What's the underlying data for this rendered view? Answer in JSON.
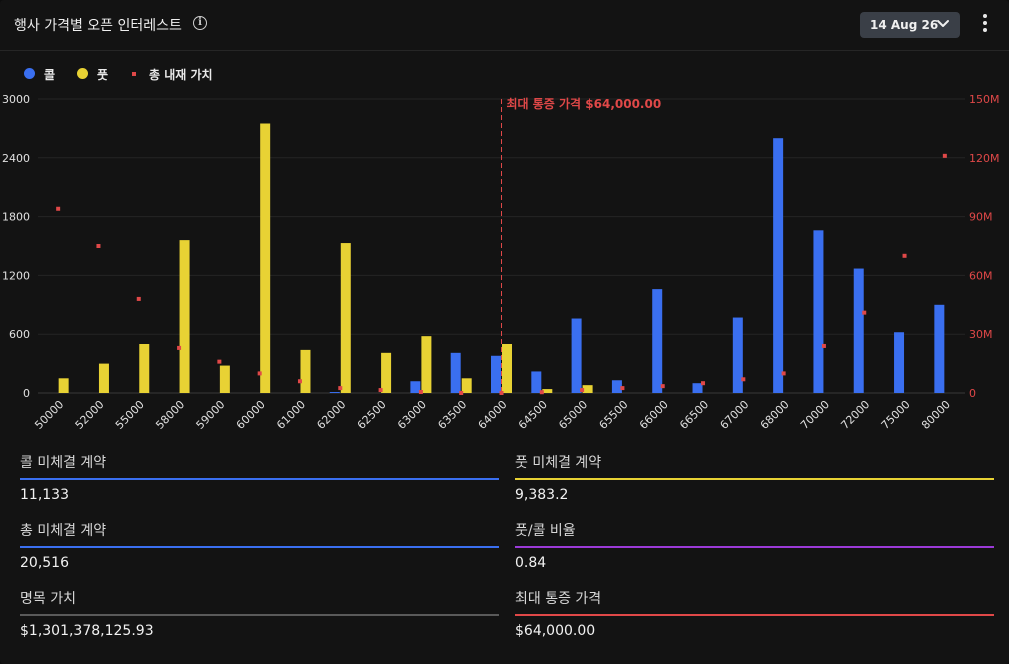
{
  "header": {
    "title": "행사 가격별 오픈 인터레스트",
    "info_glyph": "i",
    "date_value": "14 Aug 26"
  },
  "legend": [
    {
      "label": "콜",
      "color": "#3a6ff0"
    },
    {
      "label": "풋",
      "color": "#e8d234"
    },
    {
      "label": "총 내재 가치",
      "color": "#e04848"
    }
  ],
  "chart_data": {
    "type": "bar",
    "categories": [
      "50000",
      "52000",
      "55000",
      "58000",
      "59000",
      "60000",
      "61000",
      "62000",
      "62500",
      "63000",
      "63500",
      "64000",
      "64500",
      "65000",
      "65500",
      "66000",
      "66500",
      "67000",
      "68000",
      "70000",
      "72000",
      "75000",
      "80000"
    ],
    "series": [
      {
        "name": "콜",
        "color": "#3a6ff0",
        "values": [
          0,
          0,
          0,
          0,
          0,
          0,
          0,
          10,
          0,
          120,
          410,
          380,
          220,
          760,
          130,
          1060,
          100,
          770,
          2600,
          1660,
          1270,
          620,
          900
        ]
      },
      {
        "name": "풋",
        "color": "#e8d234",
        "values": [
          150,
          300,
          500,
          1560,
          280,
          2750,
          440,
          1530,
          410,
          580,
          150,
          500,
          40,
          80,
          0,
          0,
          0,
          0,
          0,
          0,
          0,
          0,
          0
        ]
      },
      {
        "name": "총 내재 가치",
        "color": "#e04848",
        "type": "scatter",
        "axis": "right",
        "values": [
          94000000,
          75000000,
          48000000,
          23000000,
          16000000,
          10000000,
          6000000,
          2500000,
          1500000,
          500000,
          0,
          0,
          400000,
          1500000,
          2500000,
          3500000,
          5000000,
          7000000,
          10000000,
          24000000,
          41000000,
          70000000,
          121000000
        ]
      }
    ],
    "y_left": {
      "min": 0,
      "max": 3000,
      "ticks": [
        "3000",
        "2400",
        "1800",
        "1200",
        "600",
        "0"
      ]
    },
    "y_right": {
      "min": 0,
      "max": 150000000,
      "ticks": [
        "150M",
        "120M",
        "90M",
        "60M",
        "30M",
        "0"
      ]
    },
    "max_pain": {
      "strike": "64000",
      "label": "최대 통증 가격 $64,000.00",
      "color": "#e04848"
    },
    "grid": true,
    "legend_position": "top-left"
  },
  "stats": [
    {
      "label": "콜 미체결 계약",
      "value": "11,133",
      "color": "#3a6ff0"
    },
    {
      "label": "풋 미체결 계약",
      "value": "9,383.2",
      "color": "#e8d234"
    },
    {
      "label": "총 미체결 계약",
      "value": "20,516",
      "color": "#3a6ff0"
    },
    {
      "label": "풋/콜 비율",
      "value": "0.84",
      "color": "#9b3ad8"
    },
    {
      "label": "명목 가치",
      "value": "$1,301,378,125.93",
      "color": "#5a5a5a"
    },
    {
      "label": "최대 통증 가격",
      "value": "$64,000.00",
      "color": "#e04848"
    }
  ]
}
